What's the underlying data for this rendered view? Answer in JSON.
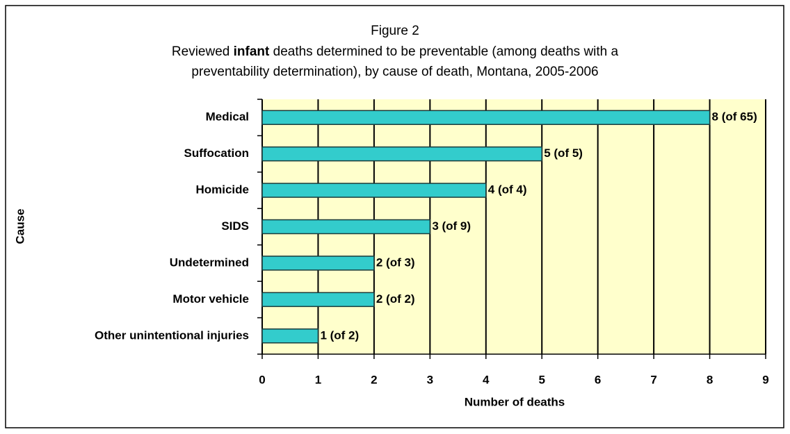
{
  "chart_data": {
    "type": "bar",
    "orientation": "horizontal",
    "title": "Figure 2",
    "subtitle": [
      "Reviewed",
      "infant",
      "deaths determined to be preventable (among deaths with a",
      "preventability determination), by cause of death, Montana, 2005-2006"
    ],
    "categories": [
      "Medical",
      "Suffocation",
      "Homicide",
      "SIDS",
      "Undetermined",
      "Motor vehicle",
      "Other unintentional injuries"
    ],
    "values": [
      8,
      5,
      4,
      3,
      2,
      2,
      1
    ],
    "value_labels": [
      "8 (of 65)",
      "5 (of 5)",
      "4 (of 4)",
      "3 (of 9)",
      "2 (of 3)",
      "2 (of 2)",
      "1 (of 2)"
    ],
    "color": "#33cccc",
    "xlim": [
      0,
      9
    ],
    "xticks": [
      0,
      1,
      2,
      3,
      4,
      5,
      6,
      7,
      8,
      9
    ],
    "x_label": "Number of deaths",
    "y_label": "Cause",
    "grid": true
  }
}
